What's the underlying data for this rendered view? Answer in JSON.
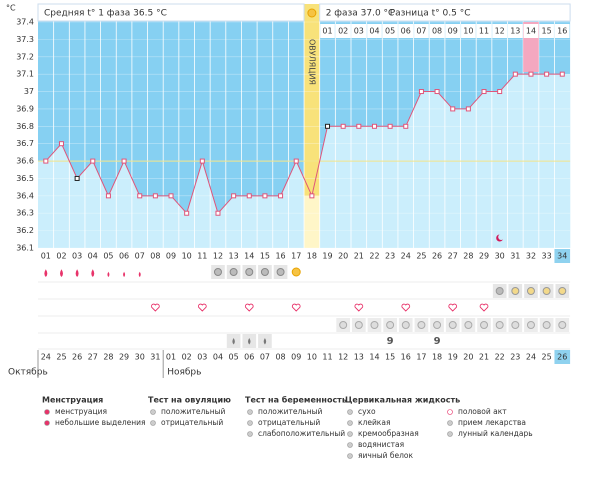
{
  "chart_data": {
    "type": "line",
    "unit": "°C",
    "phase1": "Средняя t° 1 фаза 36.5 °C",
    "phase2": "2 фаза 37.0 °C",
    "difference": "Разница t° 0.5 °C",
    "ovulation": "ОВУЛЯЦИЯ",
    "categories": [
      "01",
      "02",
      "03",
      "04",
      "05",
      "06",
      "07",
      "08",
      "09",
      "10",
      "11",
      "12",
      "13",
      "14",
      "15",
      "16",
      "17",
      "18",
      "19",
      "20",
      "21",
      "22",
      "23",
      "24",
      "25",
      "26",
      "27",
      "28",
      "29",
      "30",
      "31",
      "32",
      "33",
      "34"
    ],
    "values": [
      36.6,
      36.7,
      36.5,
      36.6,
      36.4,
      36.6,
      36.4,
      36.4,
      36.4,
      36.3,
      36.6,
      36.3,
      36.4,
      36.4,
      36.4,
      36.4,
      36.6,
      36.4,
      36.8,
      36.8,
      36.8,
      36.8,
      36.8,
      36.8,
      37,
      37,
      36.9,
      36.9,
      37,
      37,
      37.1,
      37.1,
      37.1,
      37.1
    ],
    "phase2_days": [
      "01",
      "02",
      "03",
      "04",
      "05",
      "06",
      "07",
      "08",
      "09",
      "10",
      "11",
      "12",
      "13",
      "14",
      "15",
      "16"
    ],
    "dates": [
      "24",
      "25",
      "26",
      "27",
      "28",
      "29",
      "30",
      "31",
      "01",
      "02",
      "03",
      "04",
      "05",
      "06",
      "07",
      "08",
      "09",
      "10",
      "11",
      "12",
      "13",
      "14",
      "15",
      "16",
      "17",
      "18",
      "19",
      "20",
      "21",
      "22",
      "23",
      "24",
      "25",
      "26"
    ],
    "months": [
      "Октябрь",
      "Ноябрь"
    ],
    "ylim": [
      36.1,
      37.4
    ],
    "yticks": [
      37.4,
      37.3,
      37.2,
      37.1,
      37,
      36.9,
      36.8,
      36.7,
      36.6,
      36.5,
      36.4,
      36.3,
      36.2,
      36.1
    ],
    "color": "#e0557a"
  },
  "legend": [
    {
      "title": "Менструация",
      "items": [
        "менструация",
        "небольшие выделения"
      ]
    },
    {
      "title": "Тест на овуляцию",
      "items": [
        "положительный",
        "отрицательный"
      ]
    },
    {
      "title": "Тест на беременность",
      "items": [
        "положительный",
        "отрицательный",
        "слабоположительный"
      ]
    },
    {
      "title": "Цервикальная жидкость",
      "items": [
        "сухо",
        "клейкая",
        "кремообразная",
        "водянистая",
        "яичный белок"
      ]
    },
    {
      "items": [
        "половой акт",
        "прием лекарства",
        "лунный календарь"
      ]
    }
  ]
}
